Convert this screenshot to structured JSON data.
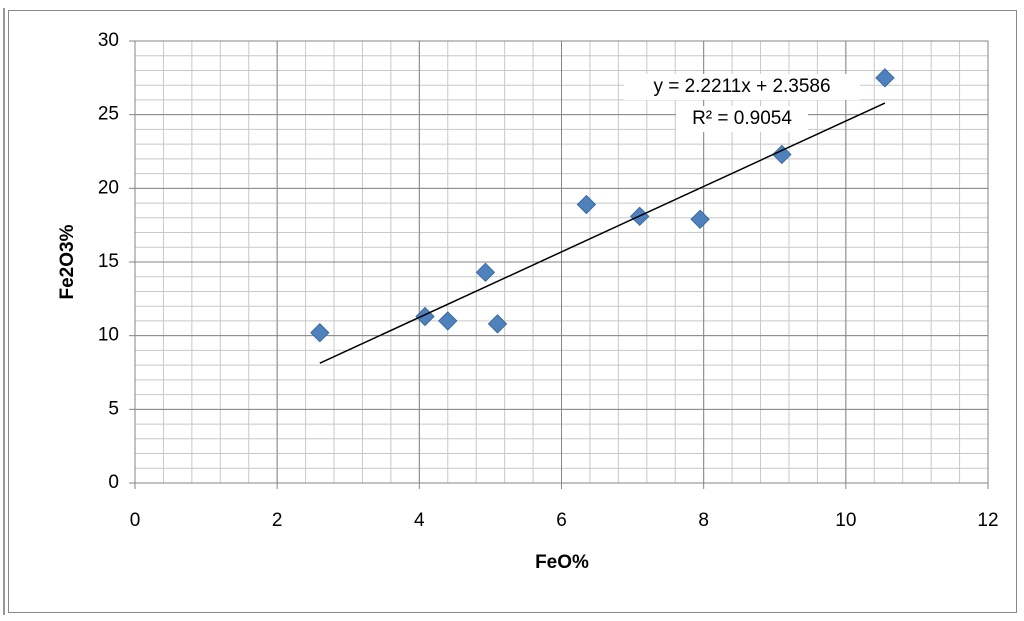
{
  "chart_data": {
    "type": "scatter",
    "x_label": "FeO%",
    "y_label": "Fe2O3%",
    "series": [
      {
        "color": "#4f81bd",
        "x": [
          2.6,
          4.08,
          4.4,
          4.93,
          5.1,
          6.35,
          7.1,
          7.95,
          9.1,
          10.55
        ],
        "values": [
          10.2,
          11.3,
          11.0,
          14.3,
          10.8,
          18.9,
          18.1,
          17.9,
          22.3,
          27.5
        ]
      }
    ],
    "trendline": {
      "slope": 2.2211,
      "intercept": 2.3586,
      "color": "#000000",
      "equation": "y = 2.2211x + 2.3586",
      "r_squared": "R² = 0.9054"
    },
    "xlim": [
      0,
      12
    ],
    "xticks": [
      0,
      2,
      4,
      6,
      8,
      10,
      12
    ],
    "ylim": [
      0,
      30
    ],
    "yticks": [
      0,
      5,
      10,
      15,
      20,
      25,
      30
    ],
    "x_minor_step": 0.4,
    "y_minor_step": 1,
    "grid": true
  }
}
